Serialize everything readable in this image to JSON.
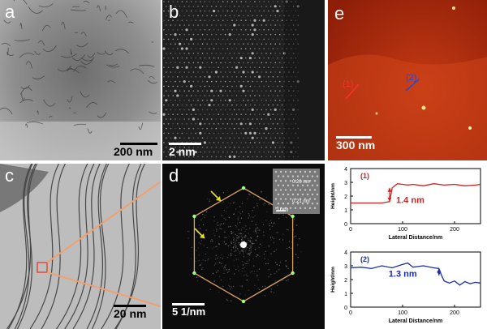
{
  "panels": {
    "a": {
      "label": "a",
      "scale_bar": "200 nm"
    },
    "b": {
      "label": "b",
      "scale_bar": "2 nm"
    },
    "c": {
      "label": "c",
      "scale_bar": "20 nm"
    },
    "d": {
      "label": "d",
      "scale_bar": "5 1/nm",
      "inset_scale": "1nm",
      "inset_spacing_1": "0.20 nm",
      "inset_spacing_2": "0.21 nm"
    },
    "e": {
      "label": "e",
      "scale_bar": "300 nm",
      "line_1_label": "(1)",
      "line_2_label": "(2)"
    }
  },
  "colors": {
    "profile_1": "#d42020",
    "profile_2": "#1a2ea8",
    "afm_bg": "#b02a0c"
  },
  "chart_data": [
    {
      "type": "line",
      "title": "(1)",
      "xlabel": "Lateral Distance/nm",
      "ylabel": "Height/nm",
      "xlim": [
        0,
        250
      ],
      "ylim": [
        0,
        4
      ],
      "xticks": [
        "0",
        "100",
        "200"
      ],
      "yticks": [
        "0",
        "1",
        "2",
        "3",
        "4"
      ],
      "annotation": "1.4 nm",
      "series": [
        {
          "x": [
            0,
            20,
            40,
            60,
            75,
            80,
            90,
            100,
            110,
            120,
            140,
            160,
            180,
            200,
            220,
            240,
            250
          ],
          "y": [
            1.5,
            1.5,
            1.5,
            1.5,
            1.6,
            2.6,
            2.9,
            2.85,
            2.8,
            2.85,
            2.75,
            2.9,
            2.8,
            2.85,
            2.75,
            2.8,
            2.85
          ]
        }
      ]
    },
    {
      "type": "line",
      "title": "(2)",
      "xlabel": "Lateral Distance/nm",
      "ylabel": "Height/nm",
      "xlim": [
        0,
        250
      ],
      "ylim": [
        0,
        4
      ],
      "xticks": [
        "0",
        "100",
        "200"
      ],
      "yticks": [
        "0",
        "1",
        "2",
        "3",
        "4"
      ],
      "annotation": "1.3 nm",
      "series": [
        {
          "x": [
            0,
            20,
            40,
            60,
            80,
            100,
            110,
            120,
            140,
            160,
            170,
            175,
            180,
            190,
            200,
            210,
            220,
            230,
            240,
            250
          ],
          "y": [
            2.85,
            2.9,
            2.8,
            3.0,
            2.85,
            3.1,
            3.2,
            2.9,
            3.0,
            2.85,
            2.8,
            2.3,
            1.9,
            1.75,
            1.9,
            1.6,
            1.85,
            1.7,
            1.8,
            1.75
          ]
        }
      ]
    }
  ]
}
